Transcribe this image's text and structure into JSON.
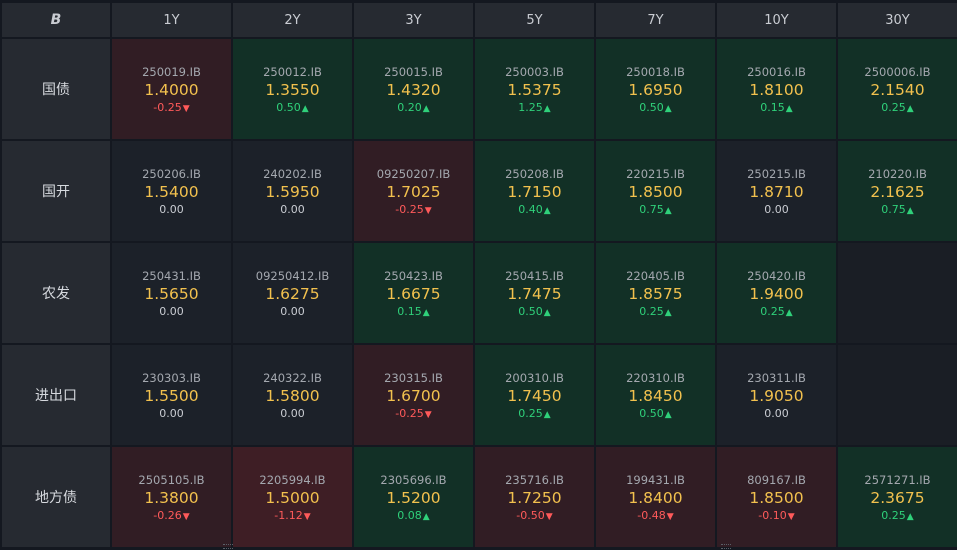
{
  "header": {
    "logo": "B",
    "tenors": [
      "1Y",
      "2Y",
      "3Y",
      "5Y",
      "7Y",
      "10Y",
      "30Y"
    ]
  },
  "colors": {
    "up": "#2fd07a",
    "down": "#ff5a5a",
    "yield": "#f2c14e"
  },
  "rows": [
    {
      "label": "国债",
      "cells": [
        {
          "code": "250019.IB",
          "yield": "1.4000",
          "change": "-0.25",
          "dir": "down",
          "tone": "down"
        },
        {
          "code": "250012.IB",
          "yield": "1.3550",
          "change": "0.50",
          "dir": "up",
          "tone": "up"
        },
        {
          "code": "250015.IB",
          "yield": "1.4320",
          "change": "0.20",
          "dir": "up",
          "tone": "up"
        },
        {
          "code": "250003.IB",
          "yield": "1.5375",
          "change": "1.25",
          "dir": "up",
          "tone": "up"
        },
        {
          "code": "250018.IB",
          "yield": "1.6950",
          "change": "0.50",
          "dir": "up",
          "tone": "up"
        },
        {
          "code": "250016.IB",
          "yield": "1.8100",
          "change": "0.15",
          "dir": "up",
          "tone": "up"
        },
        {
          "code": "2500006.IB",
          "yield": "2.1540",
          "change": "0.25",
          "dir": "up",
          "tone": "up"
        }
      ]
    },
    {
      "label": "国开",
      "cells": [
        {
          "code": "250206.IB",
          "yield": "1.5400",
          "change": "0.00",
          "dir": "flat",
          "tone": "neutral"
        },
        {
          "code": "240202.IB",
          "yield": "1.5950",
          "change": "0.00",
          "dir": "flat",
          "tone": "neutral"
        },
        {
          "code": "09250207.IB",
          "yield": "1.7025",
          "change": "-0.25",
          "dir": "down",
          "tone": "down"
        },
        {
          "code": "250208.IB",
          "yield": "1.7150",
          "change": "0.40",
          "dir": "up",
          "tone": "up"
        },
        {
          "code": "220215.IB",
          "yield": "1.8500",
          "change": "0.75",
          "dir": "up",
          "tone": "up"
        },
        {
          "code": "250215.IB",
          "yield": "1.8710",
          "change": "0.00",
          "dir": "flat",
          "tone": "neutral"
        },
        {
          "code": "210220.IB",
          "yield": "2.1625",
          "change": "0.75",
          "dir": "up",
          "tone": "up"
        }
      ]
    },
    {
      "label": "农发",
      "cells": [
        {
          "code": "250431.IB",
          "yield": "1.5650",
          "change": "0.00",
          "dir": "flat",
          "tone": "neutral"
        },
        {
          "code": "09250412.IB",
          "yield": "1.6275",
          "change": "0.00",
          "dir": "flat",
          "tone": "neutral"
        },
        {
          "code": "250423.IB",
          "yield": "1.6675",
          "change": "0.15",
          "dir": "up",
          "tone": "up"
        },
        {
          "code": "250415.IB",
          "yield": "1.7475",
          "change": "0.50",
          "dir": "up",
          "tone": "up"
        },
        {
          "code": "220405.IB",
          "yield": "1.8575",
          "change": "0.25",
          "dir": "up",
          "tone": "up"
        },
        {
          "code": "250420.IB",
          "yield": "1.9400",
          "change": "0.25",
          "dir": "up",
          "tone": "up"
        },
        null
      ]
    },
    {
      "label": "进出口",
      "cells": [
        {
          "code": "230303.IB",
          "yield": "1.5500",
          "change": "0.00",
          "dir": "flat",
          "tone": "neutral"
        },
        {
          "code": "240322.IB",
          "yield": "1.5800",
          "change": "0.00",
          "dir": "flat",
          "tone": "neutral"
        },
        {
          "code": "230315.IB",
          "yield": "1.6700",
          "change": "-0.25",
          "dir": "down",
          "tone": "down"
        },
        {
          "code": "200310.IB",
          "yield": "1.7450",
          "change": "0.25",
          "dir": "up",
          "tone": "up"
        },
        {
          "code": "220310.IB",
          "yield": "1.8450",
          "change": "0.50",
          "dir": "up",
          "tone": "up"
        },
        {
          "code": "230311.IB",
          "yield": "1.9050",
          "change": "0.00",
          "dir": "flat",
          "tone": "neutral"
        },
        null
      ]
    },
    {
      "label": "地方债",
      "cells": [
        {
          "code": "2505105.IB",
          "yield": "1.3800",
          "change": "-0.26",
          "dir": "down",
          "tone": "down"
        },
        {
          "code": "2205994.IB",
          "yield": "1.5000",
          "change": "-1.12",
          "dir": "down",
          "tone": "down-strong"
        },
        {
          "code": "2305696.IB",
          "yield": "1.5200",
          "change": "0.08",
          "dir": "up",
          "tone": "up"
        },
        {
          "code": "235716.IB",
          "yield": "1.7250",
          "change": "-0.50",
          "dir": "down",
          "tone": "down"
        },
        {
          "code": "199431.IB",
          "yield": "1.8400",
          "change": "-0.48",
          "dir": "down",
          "tone": "down"
        },
        {
          "code": "809167.IB",
          "yield": "1.8500",
          "change": "-0.10",
          "dir": "down",
          "tone": "down"
        },
        {
          "code": "2571271.IB",
          "yield": "2.3675",
          "change": "0.25",
          "dir": "up",
          "tone": "up"
        }
      ]
    }
  ]
}
